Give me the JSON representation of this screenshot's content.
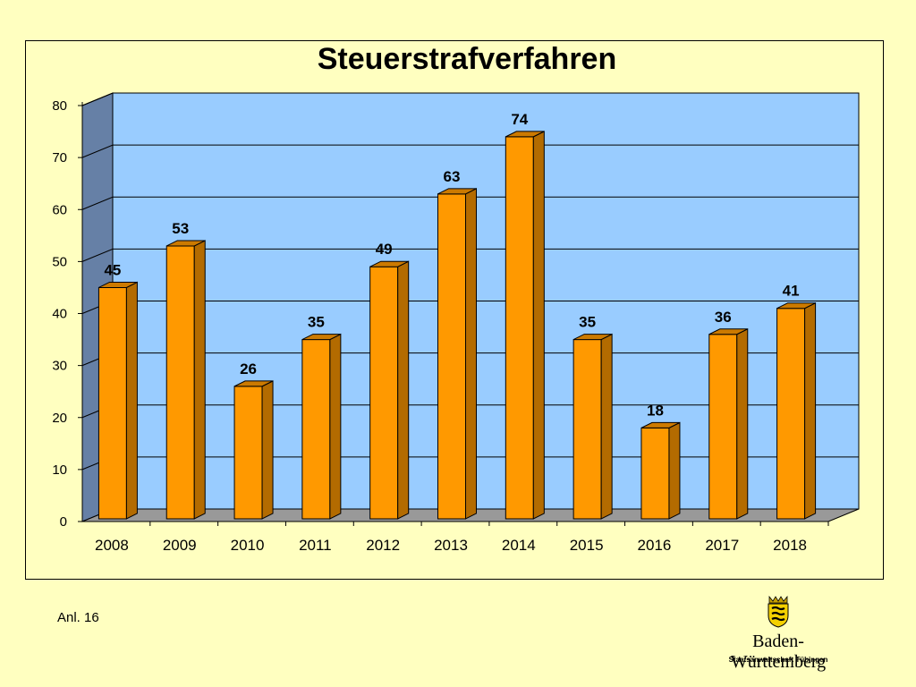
{
  "chart_data": {
    "type": "bar",
    "title": "Steuerstrafverfahren",
    "categories": [
      "2008",
      "2009",
      "2010",
      "2011",
      "2012",
      "2013",
      "2014",
      "2015",
      "2016",
      "2017",
      "2018"
    ],
    "values": [
      45,
      53,
      26,
      35,
      49,
      63,
      74,
      35,
      18,
      36,
      41
    ],
    "ylim": [
      0,
      80
    ],
    "yticks": [
      0,
      10,
      20,
      30,
      40,
      50,
      60,
      70,
      80
    ],
    "grid": true,
    "data_labels": true,
    "colors": {
      "bar_front": "#ff9900",
      "bar_side": "#b36b00",
      "bar_top": "#cc7a00",
      "plot_back": "#99ccff",
      "plot_left_wall": "#6680a6",
      "plot_floor": "#999999"
    }
  },
  "footnote": "Anl. 16",
  "logo": {
    "name": "Baden-Württemberg",
    "subtitle": "Staatsanwaltschaft Tübingen",
    "icon": "coat-of-arms-icon"
  }
}
